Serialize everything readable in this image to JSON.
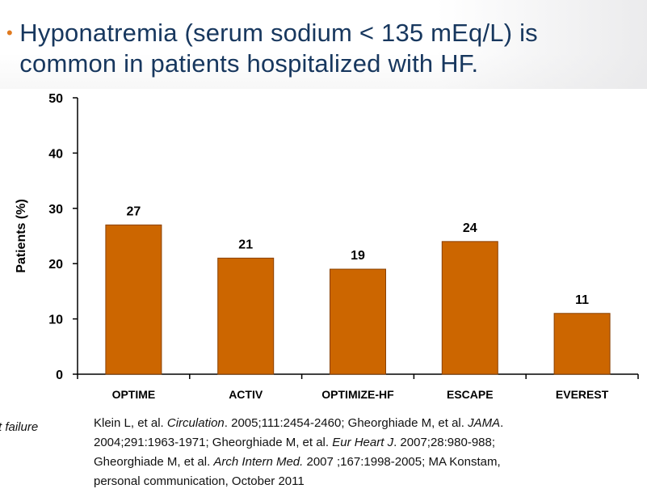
{
  "slide": {
    "bullet_glyph": "•",
    "title": "Hyponatremia (serum sodium < 135 mEq/L) is common in patients hospitalized with HF.",
    "left_fragment": "t failure"
  },
  "references": [
    {
      "text": "Klein L, et al. "
    },
    {
      "text": "Circulation",
      "italic": true
    },
    {
      "text": ". 2005;111:2454-2460; Gheorghiade M, et al. "
    },
    {
      "text": "JAMA",
      "italic": true
    },
    {
      "text": ". 2004;291:1963-1971; Gheorghiade M, et al. "
    },
    {
      "text": "Eur Heart J",
      "italic": true
    },
    {
      "text": ". 2007;28:980-988; Gheorghiade M, et al. "
    },
    {
      "text": "Arch Intern Med.",
      "italic": true
    },
    {
      "text": " 2007 ;167:1998-2005; MA Konstam, personal communication, October 2011"
    }
  ],
  "chart_data": {
    "type": "bar",
    "categories": [
      "OPTIME",
      "ACTIV",
      "OPTIMIZE-HF",
      "ESCAPE",
      "EVEREST"
    ],
    "values": [
      27,
      21,
      19,
      24,
      11
    ],
    "data_labels": [
      "27",
      "21",
      "19",
      "24",
      "11"
    ],
    "ylabel": "Patients (%)",
    "ylim": [
      0,
      50
    ],
    "yticks": [
      0,
      10,
      20,
      30,
      40,
      50
    ],
    "grid": false,
    "bar_color": "#cc6600"
  },
  "colors": {
    "title": "#17375e",
    "bullet": "#e07a1f",
    "bar_stroke": "#8a4000"
  }
}
